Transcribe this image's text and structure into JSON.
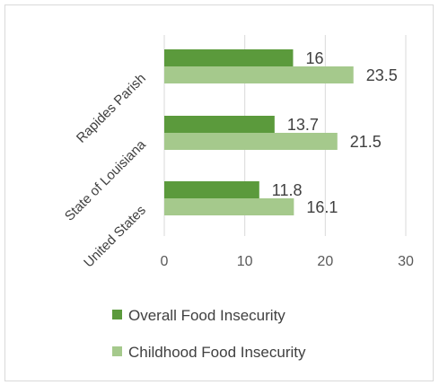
{
  "chart_data": {
    "type": "bar",
    "orientation": "horizontal",
    "categories": [
      "Rapides Parish",
      "State of Louisiana",
      "United States"
    ],
    "series": [
      {
        "name": "Overall Food Insecurity",
        "values": [
          16,
          13.7,
          11.8
        ],
        "color": "#5b9a3c"
      },
      {
        "name": "Childhood Food Insecurity",
        "values": [
          23.5,
          21.5,
          16.1
        ],
        "color": "#a5c98c"
      }
    ],
    "xlim": [
      0,
      30
    ],
    "xticks": [
      0,
      10,
      20,
      30
    ],
    "grid": "vertical",
    "legend_position": "bottom",
    "data_labels": true
  }
}
